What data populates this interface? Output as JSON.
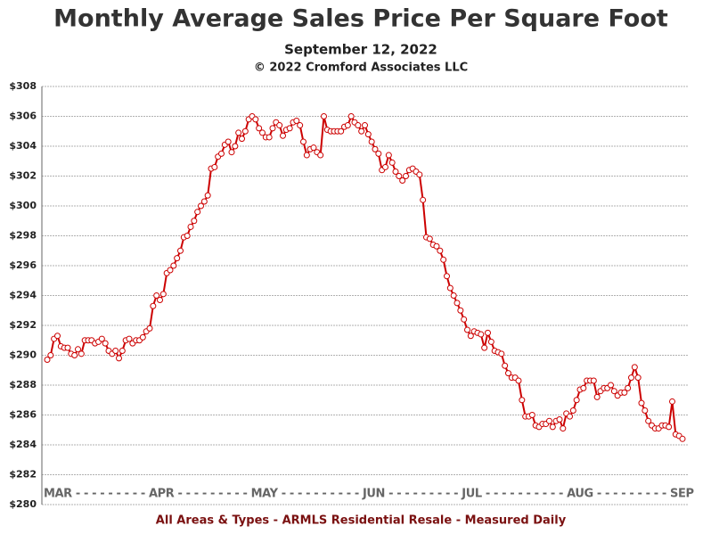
{
  "chart_data": {
    "type": "line",
    "title": "Monthly Average Sales Price Per Square Foot",
    "subtitle": "September 12, 2022",
    "copyright": "© 2022 Cromford Associates LLC",
    "x_axis_text": "MAR - - - - - - - - - APR - - - - - - - - - MAY - - - - - - - - - - JUN - - - - - - - - - JUL - - - - - - - - - - AUG - - - - - - - - - SEP",
    "footer": "All Areas & Types - ARMLS Residential Resale - Measured Daily",
    "ylim": [
      280,
      308
    ],
    "yticks": [
      {
        "value": 280,
        "label": "$280"
      },
      {
        "value": 282,
        "label": "$282"
      },
      {
        "value": 284,
        "label": "$284"
      },
      {
        "value": 286,
        "label": "$286"
      },
      {
        "value": 288,
        "label": "$288"
      },
      {
        "value": 290,
        "label": "$290"
      },
      {
        "value": 292,
        "label": "$292"
      },
      {
        "value": 294,
        "label": "$294"
      },
      {
        "value": 296,
        "label": "$296"
      },
      {
        "value": 298,
        "label": "$298"
      },
      {
        "value": 300,
        "label": "$300"
      },
      {
        "value": 302,
        "label": "$302"
      },
      {
        "value": 304,
        "label": "$304"
      },
      {
        "value": 306,
        "label": "$306"
      },
      {
        "value": 308,
        "label": "$308"
      }
    ],
    "grid": true,
    "color": "#cc0000",
    "values": [
      289.7,
      290,
      291.1,
      291.3,
      290.6,
      290.5,
      290.5,
      290.1,
      290.0,
      290.4,
      290.1,
      291.0,
      291.0,
      291.0,
      290.8,
      290.9,
      291.1,
      290.8,
      290.3,
      290.1,
      290.3,
      289.8,
      290.3,
      291.0,
      291.1,
      290.8,
      291.0,
      291.0,
      291.2,
      291.6,
      291.8,
      293.3,
      294.0,
      293.7,
      294.1,
      295.5,
      295.7,
      296.0,
      296.5,
      297.0,
      297.9,
      298.0,
      298.6,
      299.0,
      299.6,
      300.0,
      300.3,
      300.7,
      302.5,
      302.6,
      303.3,
      303.5,
      304.1,
      304.3,
      303.6,
      304.0,
      304.9,
      304.5,
      305.0,
      305.8,
      306.0,
      305.8,
      305.2,
      304.9,
      304.6,
      304.6,
      305.2,
      305.6,
      305.4,
      304.7,
      305.1,
      305.2,
      305.6,
      305.7,
      305.4,
      304.3,
      303.4,
      303.8,
      303.9,
      303.6,
      303.4,
      306.0,
      305.1,
      305.0,
      305.0,
      305.0,
      305.0,
      305.3,
      305.4,
      306.0,
      305.6,
      305.4,
      305.0,
      305.4,
      304.8,
      304.3,
      303.8,
      303.5,
      302.4,
      302.6,
      303.4,
      302.9,
      302.3,
      302.0,
      301.7,
      302.0,
      302.4,
      302.5,
      302.3,
      302.1,
      300.4,
      297.9,
      297.8,
      297.4,
      297.3,
      297.0,
      296.4,
      295.3,
      294.5,
      294.0,
      293.5,
      293.0,
      292.4,
      291.7,
      291.3,
      291.6,
      291.5,
      291.4,
      290.5,
      291.5,
      290.9,
      290.3,
      290.2,
      290.1,
      289.3,
      288.8,
      288.5,
      288.5,
      288.3,
      287.0,
      285.9,
      285.9,
      286.0,
      285.3,
      285.2,
      285.4,
      285.4,
      285.6,
      285.2,
      285.6,
      285.7,
      285.1,
      286.1,
      285.9,
      286.3,
      287.0,
      287.7,
      287.8,
      288.3,
      288.3,
      288.3,
      287.2,
      287.6,
      287.8,
      287.8,
      288.0,
      287.6,
      287.3,
      287.5,
      287.5,
      287.8,
      288.5,
      289.2,
      288.5,
      286.8,
      286.3,
      285.6,
      285.3,
      285.1,
      285.1,
      285.3,
      285.3,
      285.2,
      286.9,
      284.7,
      284.6,
      284.4
    ]
  }
}
